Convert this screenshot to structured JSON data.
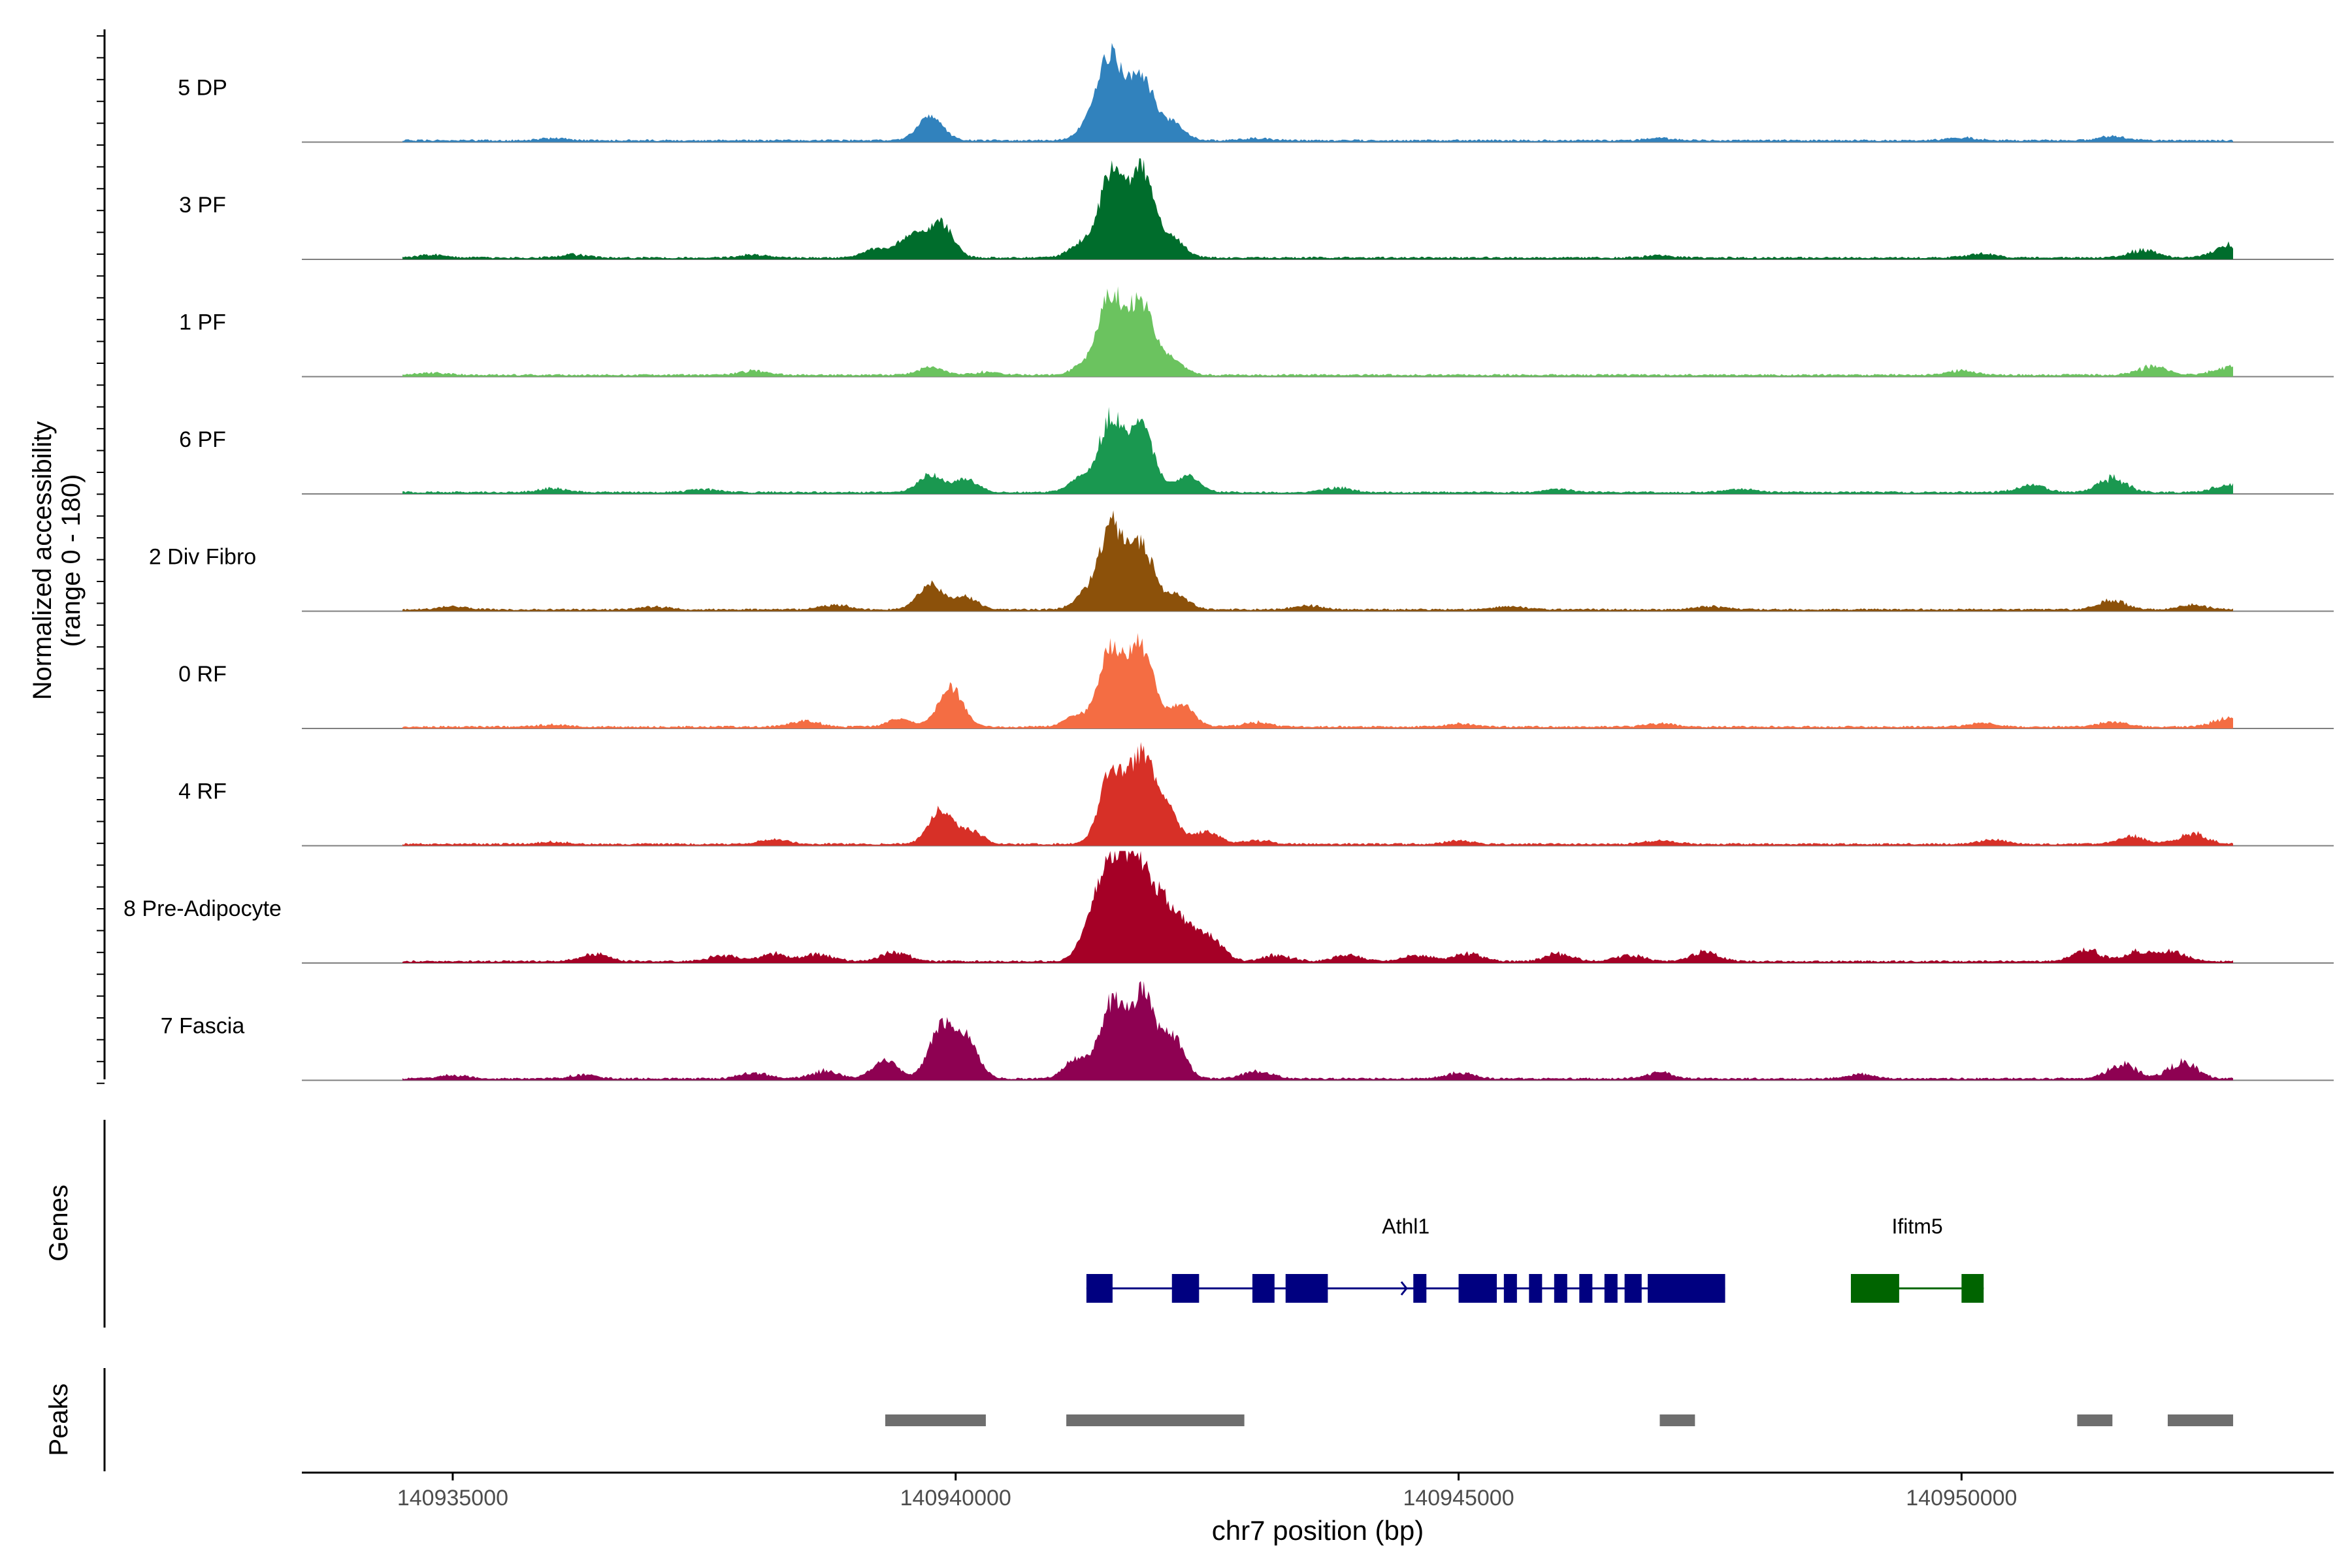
{
  "chart_data": {
    "type": "area",
    "title": "",
    "ylabel_line1": "Normalized accessibility",
    "ylabel_line2": "(range 0 - 180)",
    "y_range": [
      0,
      180
    ],
    "xlabel": "chr7 position (bp)",
    "x_range": [
      140933500,
      140953700
    ],
    "x_ticks": [
      {
        "value": 140935000,
        "label": "140935000"
      },
      {
        "value": 140940000,
        "label": "140940000"
      },
      {
        "value": 140945000,
        "label": "140945000"
      },
      {
        "value": 140950000,
        "label": "140950000"
      }
    ],
    "data_extent": [
      140934500,
      140952700
    ],
    "tracks": [
      {
        "name": "5 DP",
        "color": "#3182BD",
        "peaks": [
          [
            140939750,
            32
          ],
          [
            140941550,
            100
          ],
          [
            140941850,
            78
          ],
          [
            140941350,
            22
          ],
          [
            140942150,
            22
          ]
        ],
        "noise": [
          [
            140936000,
            3
          ],
          [
            140943000,
            3
          ],
          [
            140947000,
            3
          ],
          [
            140950000,
            4
          ],
          [
            140951500,
            5
          ]
        ]
      },
      {
        "name": "3 PF",
        "color": "#006D2C",
        "peaks": [
          [
            140939200,
            12
          ],
          [
            140939850,
            44
          ],
          [
            140939550,
            28
          ],
          [
            140941550,
            104
          ],
          [
            140941850,
            108
          ],
          [
            140941250,
            18
          ],
          [
            140942150,
            24
          ]
        ],
        "noise": [
          [
            140934800,
            4
          ],
          [
            140936200,
            4
          ],
          [
            140938000,
            4
          ],
          [
            140947000,
            3
          ],
          [
            140950200,
            5
          ],
          [
            140951800,
            10
          ],
          [
            140952650,
            16
          ]
        ]
      },
      {
        "name": "1 PF",
        "color": "#6BC35F",
        "peaks": [
          [
            140939750,
            10
          ],
          [
            140941300,
            14
          ],
          [
            140941550,
            98
          ],
          [
            140941850,
            90
          ],
          [
            140942150,
            18
          ]
        ],
        "noise": [
          [
            140934800,
            3
          ],
          [
            140938000,
            6
          ],
          [
            140940300,
            4
          ],
          [
            140950000,
            6
          ],
          [
            140951900,
            12
          ],
          [
            140952650,
            10
          ]
        ]
      },
      {
        "name": "6 PF",
        "color": "#1A9850",
        "peaks": [
          [
            140939750,
            22
          ],
          [
            140940100,
            16
          ],
          [
            140941550,
            92
          ],
          [
            140941850,
            80
          ],
          [
            140941250,
            18
          ],
          [
            140942300,
            20
          ]
        ],
        "noise": [
          [
            140936000,
            5
          ],
          [
            140937500,
            4
          ],
          [
            140943800,
            6
          ],
          [
            140946000,
            4
          ],
          [
            140947800,
            4
          ],
          [
            140950700,
            10
          ],
          [
            140951500,
            18
          ],
          [
            140952650,
            10
          ]
        ]
      },
      {
        "name": "2 Div Fibro",
        "color": "#8C510A",
        "peaks": [
          [
            140939750,
            32
          ],
          [
            140940100,
            16
          ],
          [
            140941550,
            104
          ],
          [
            140941850,
            80
          ],
          [
            140941300,
            18
          ],
          [
            140942200,
            18
          ]
        ],
        "noise": [
          [
            140935000,
            4
          ],
          [
            140937000,
            4
          ],
          [
            140938800,
            6
          ],
          [
            140943500,
            5
          ],
          [
            140945500,
            4
          ],
          [
            140947500,
            4
          ],
          [
            140951500,
            12
          ],
          [
            140952300,
            6
          ]
        ]
      },
      {
        "name": "0 RF",
        "color": "#F46D43",
        "peaks": [
          [
            140939950,
            50
          ],
          [
            140939450,
            10
          ],
          [
            140941550,
            100
          ],
          [
            140941850,
            100
          ],
          [
            140942250,
            28
          ],
          [
            140941200,
            14
          ]
        ],
        "noise": [
          [
            140936000,
            3
          ],
          [
            140938500,
            8
          ],
          [
            140943000,
            6
          ],
          [
            140945000,
            4
          ],
          [
            140947000,
            4
          ],
          [
            140950200,
            5
          ],
          [
            140951500,
            7
          ],
          [
            140952650,
            12
          ]
        ]
      },
      {
        "name": "4 RF",
        "color": "#D73027",
        "peaks": [
          [
            140939850,
            42
          ],
          [
            140940150,
            16
          ],
          [
            140941550,
            88
          ],
          [
            140941850,
            110
          ],
          [
            140942100,
            40
          ],
          [
            140942500,
            16
          ]
        ],
        "noise": [
          [
            140936000,
            3
          ],
          [
            140938200,
            6
          ],
          [
            140943000,
            5
          ],
          [
            140945000,
            4
          ],
          [
            140947000,
            5
          ],
          [
            140950300,
            6
          ],
          [
            140951700,
            10
          ],
          [
            140952300,
            14
          ]
        ]
      },
      {
        "name": "8 Pre-Adipocyte",
        "color": "#A50026",
        "peaks": [
          [
            140941350,
            40
          ],
          [
            140941550,
            118
          ],
          [
            140941800,
            116
          ],
          [
            140942050,
            70
          ],
          [
            140942300,
            40
          ],
          [
            140942550,
            26
          ]
        ],
        "noise": [
          [
            140936400,
            10
          ],
          [
            140937700,
            8
          ],
          [
            140938200,
            10
          ],
          [
            140938650,
            10
          ],
          [
            140939400,
            12
          ],
          [
            140943200,
            8
          ],
          [
            140943900,
            8
          ],
          [
            140944600,
            8
          ],
          [
            140945100,
            10
          ],
          [
            140946000,
            10
          ],
          [
            140946700,
            8
          ],
          [
            140947450,
            12
          ],
          [
            140951250,
            14
          ],
          [
            140951750,
            12
          ],
          [
            140952100,
            12
          ]
        ]
      },
      {
        "name": "7 Fascia",
        "color": "#8E0152",
        "peaks": [
          [
            140939300,
            24
          ],
          [
            140939850,
            62
          ],
          [
            140940100,
            50
          ],
          [
            140941550,
            92
          ],
          [
            140941850,
            102
          ],
          [
            140942150,
            52
          ],
          [
            140941200,
            24
          ]
        ],
        "noise": [
          [
            140935000,
            5
          ],
          [
            140936300,
            5
          ],
          [
            140938000,
            8
          ],
          [
            140938700,
            10
          ],
          [
            140943000,
            10
          ],
          [
            140945000,
            8
          ],
          [
            140947000,
            8
          ],
          [
            140949000,
            6
          ],
          [
            140951600,
            20
          ],
          [
            140952200,
            22
          ]
        ]
      }
    ],
    "genes_track_label": "Genes",
    "genes": [
      {
        "name": "Athl1",
        "color": "#000080",
        "strand": "+",
        "start": 140941300,
        "end": 140947650,
        "exons": [
          [
            140941300,
            140941560
          ],
          [
            140942150,
            140942420
          ],
          [
            140942950,
            140943170
          ],
          [
            140943280,
            140943700
          ],
          [
            140944550,
            140944680
          ],
          [
            140945000,
            140945380
          ],
          [
            140945450,
            140945580
          ],
          [
            140945700,
            140945830
          ],
          [
            140945950,
            140946080
          ],
          [
            140946200,
            140946330
          ],
          [
            140946450,
            140946580
          ],
          [
            140946650,
            140946820
          ],
          [
            140946880,
            140947650
          ]
        ]
      },
      {
        "name": "Ifitm5",
        "color": "#006400",
        "strand": "-",
        "start": 140948900,
        "end": 140950220,
        "exons": [
          [
            140948900,
            140949380
          ],
          [
            140950000,
            140950220
          ]
        ]
      }
    ],
    "peaks_track_label": "Peaks",
    "peak_regions": [
      [
        140939300,
        140940300
      ],
      [
        140941100,
        140942870
      ],
      [
        140947000,
        140947350
      ],
      [
        140951150,
        140951500
      ],
      [
        140952050,
        140952700
      ]
    ]
  }
}
